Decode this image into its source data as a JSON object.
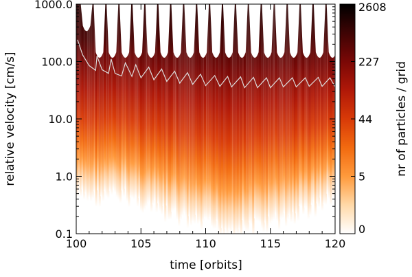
{
  "chart_data": {
    "type": "heatmap",
    "title": "",
    "xlabel": "time [orbits]",
    "ylabel": "relative velocity [cm/s]",
    "xlim": [
      100,
      120
    ],
    "ylim": [
      0.1,
      1000
    ],
    "yscale": "log",
    "x_ticks": [
      100,
      105,
      110,
      115,
      120
    ],
    "x_tick_labels": [
      "100",
      "105",
      "110",
      "115",
      "120"
    ],
    "y_ticks": [
      0.1,
      1,
      10,
      100,
      1000
    ],
    "y_tick_labels": [
      "0.1",
      "1.0",
      "10.0",
      "100.0",
      "1000.0"
    ],
    "colorbar": {
      "label": "nr of particles / grid",
      "ticks": [
        0,
        5,
        44,
        227,
        2608
      ],
      "tick_labels": [
        "0",
        "5",
        "44",
        "227",
        "2608"
      ],
      "colors": [
        "#ffffff",
        "#ffd9a8",
        "#ff9a3c",
        "#f26a10",
        "#d83a08",
        "#b01808",
        "#7a0806",
        "#3e0404",
        "#000000"
      ]
    },
    "series": [
      {
        "type": "line",
        "color": "#dddddd",
        "x": [
          100.1,
          100.5,
          101.0,
          101.5,
          101.6,
          102.0,
          102.5,
          102.7,
          103.0,
          103.5,
          103.8,
          104.3,
          104.6,
          105.0,
          105.6,
          106.0,
          106.6,
          107.0,
          107.6,
          108.0,
          108.6,
          109.0,
          109.6,
          110.0,
          110.7,
          111.1,
          111.7,
          112.0,
          112.7,
          113.0,
          113.7,
          114.0,
          114.7,
          115.0,
          115.7,
          116.0,
          116.7,
          117.0,
          117.7,
          118.0,
          118.7,
          119.0,
          119.6,
          120.0
        ],
        "y": [
          240,
          130,
          85,
          70,
          125,
          72,
          62,
          110,
          62,
          56,
          95,
          55,
          88,
          52,
          80,
          48,
          74,
          45,
          68,
          42,
          64,
          40,
          60,
          38,
          57,
          37,
          55,
          36,
          54,
          35,
          53,
          35,
          52,
          35,
          52,
          36,
          52,
          36,
          52,
          37,
          53,
          37,
          52,
          36
        ]
      }
    ]
  }
}
